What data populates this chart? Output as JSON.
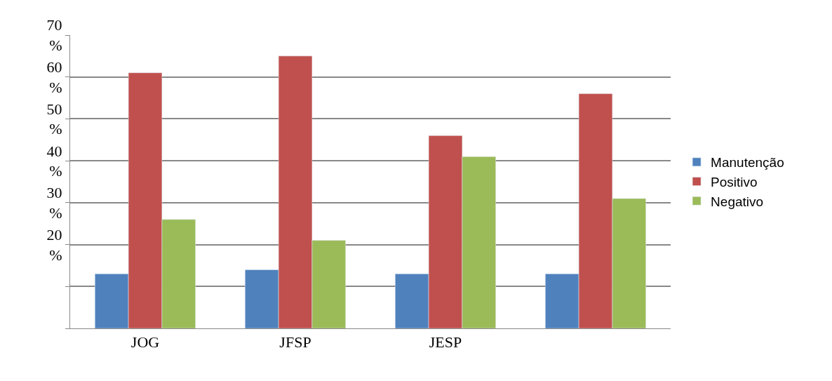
{
  "chart_data": {
    "type": "bar",
    "categories": [
      "JOG",
      "JFSP",
      "JESP",
      null
    ],
    "series": [
      {
        "name": "Manutenção",
        "color": "#4f81bd",
        "values": [
          13,
          14,
          13,
          13
        ]
      },
      {
        "name": "Positivo",
        "color": "#c0504d",
        "values": [
          61,
          65,
          46,
          56
        ]
      },
      {
        "name": "Negativo",
        "color": "#9bbb59",
        "values": [
          26,
          21,
          41,
          31
        ]
      }
    ],
    "ylim": [
      0,
      70
    ],
    "yticks": [
      {
        "value": 0,
        "label": null
      },
      {
        "value": 10,
        "label": null
      },
      {
        "value": 20,
        "label": "20\n%"
      },
      {
        "value": 30,
        "label": "30\n%"
      },
      {
        "value": 40,
        "label": "40\n%"
      },
      {
        "value": 50,
        "label": "50\n%"
      },
      {
        "value": 60,
        "label": "60\n%"
      },
      {
        "value": 70,
        "label": "70\n%"
      }
    ],
    "grid": "y",
    "legend": "right"
  }
}
